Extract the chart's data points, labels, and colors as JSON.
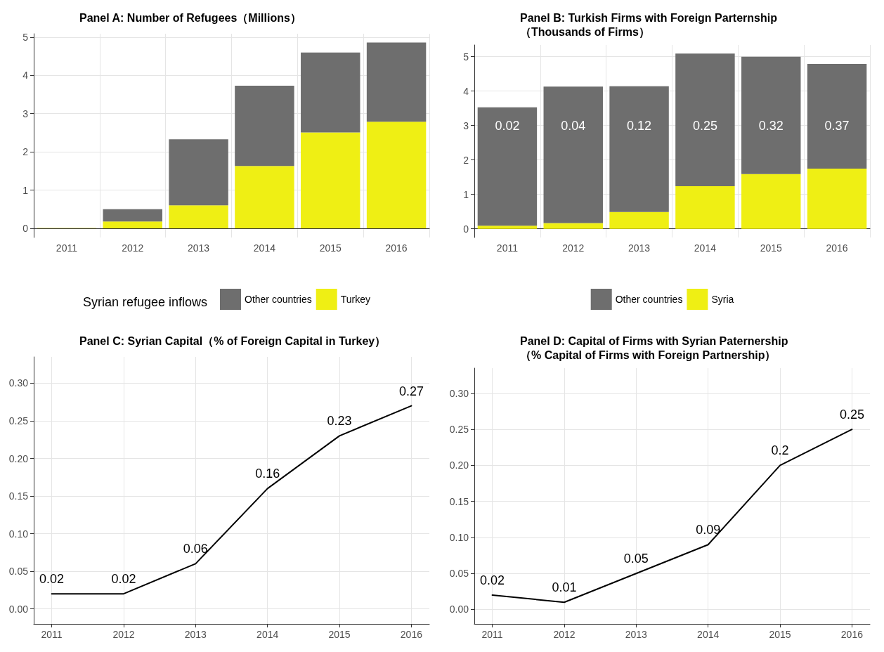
{
  "chart_data": [
    {
      "type": "bar",
      "title": "Panel A: Number of Refugees（Millions）",
      "categories": [
        "2011",
        "2012",
        "2013",
        "2014",
        "2015",
        "2016"
      ],
      "stacked": true,
      "legend_title": "Syrian refugee inflows",
      "legend": "bottom",
      "grid": true,
      "ylim": [
        -0.24,
        5.09
      ],
      "yticks": [
        0,
        1,
        2,
        3,
        4,
        5
      ],
      "series": [
        {
          "name": "Turkey",
          "color": "#efef14",
          "values": [
            0.01,
            0.18,
            0.6,
            1.63,
            2.51,
            2.79
          ]
        },
        {
          "name": "Other countries",
          "color": "#6e6e6e",
          "values": [
            0,
            0.32,
            1.73,
            2.1,
            2.09,
            2.07
          ]
        }
      ]
    },
    {
      "type": "bar",
      "title": "Panel B: Turkish Firms with Foreign Parternship",
      "subtitle": "（Thousands of Firms）",
      "categories": [
        "2011",
        "2012",
        "2013",
        "2014",
        "2015",
        "2016"
      ],
      "stacked": true,
      "legend": "bottom",
      "grid": true,
      "ylim": [
        -0.25,
        5.34
      ],
      "yticks": [
        0,
        1,
        2,
        3,
        4,
        5
      ],
      "series": [
        {
          "name": "Syria",
          "color": "#efef14",
          "values": [
            0.09,
            0.17,
            0.49,
            1.24,
            1.59,
            1.75
          ]
        },
        {
          "name": "Other countries",
          "color": "#6e6e6e",
          "values": [
            3.44,
            3.96,
            3.65,
            3.85,
            3.41,
            3.04
          ]
        }
      ],
      "annotations": [
        "0.02",
        "0.04",
        "0.12",
        "0.25",
        "0.32",
        "0.37"
      ]
    },
    {
      "type": "line",
      "title": "Panel C: Syrian Capital（% of Foreign Capital in Turkey）",
      "x": [
        2011,
        2012,
        2013,
        2014,
        2015,
        2016
      ],
      "values": [
        0.02,
        0.02,
        0.06,
        0.16,
        0.23,
        0.27
      ],
      "color": "#000000",
      "data_labels": true,
      "grid": true,
      "xlim": [
        2010.75,
        2016.25
      ],
      "xticks": [
        2011,
        2012,
        2013,
        2014,
        2015,
        2016
      ],
      "ylim": [
        -0.02,
        0.335
      ],
      "yticks": [
        {
          "value": 0,
          "label": "0.00"
        },
        0.05,
        {
          "value": 0.1,
          "label": "0.10"
        },
        0.15,
        {
          "value": 0.2,
          "label": "0.20"
        },
        0.25,
        {
          "value": 0.3,
          "label": "0.30"
        }
      ]
    },
    {
      "type": "line",
      "title": "Panel D: Capital of Firms with Syrian Paternership",
      "subtitle": "（% Capital of Firms with Foreign Partnership）",
      "x": [
        2011,
        2012,
        2013,
        2014,
        2015,
        2016
      ],
      "values": [
        0.02,
        0.01,
        0.05,
        0.09,
        0.2,
        0.25
      ],
      "color": "#000000",
      "data_labels": true,
      "grid": true,
      "xlim": [
        2010.75,
        2016.25
      ],
      "xticks": [
        2011,
        2012,
        2013,
        2014,
        2015,
        2016
      ],
      "ylim": [
        -0.02,
        0.335
      ],
      "yticks": [
        {
          "value": 0,
          "label": "0.00"
        },
        0.05,
        {
          "value": 0.1,
          "label": "0.10"
        },
        0.15,
        {
          "value": 0.2,
          "label": "0.20"
        },
        0.25,
        {
          "value": 0.3,
          "label": "0.30"
        }
      ]
    }
  ]
}
